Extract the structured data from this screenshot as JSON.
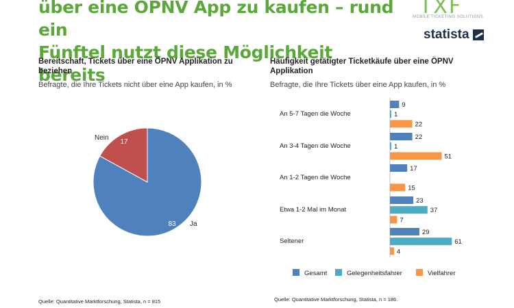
{
  "header": {
    "title_line1": "über eine ÖPNV App zu kaufen – rund ein",
    "title_line2": "Fünftel nutzt diese Möglichkeit bereits",
    "logo_mark": "TXF",
    "logo_sub": "MOBILE TICKETING SOLUTIONS",
    "brand": "statista"
  },
  "colors": {
    "headline": "#5aa83a",
    "ja": "#4f81bd",
    "nein": "#c0504d",
    "gesamt": "#4f81bd",
    "gelegenheit": "#4bacc6",
    "viel": "#f79646"
  },
  "chart_data": [
    {
      "type": "pie",
      "title": "Bereitschaft, Tickets über eine ÖPNV Applikation zu beziehen",
      "subtitle": "Befragte, die Ihre Tickets nicht über eine App kaufen, in %",
      "categories": [
        "Ja",
        "Nein"
      ],
      "values": [
        83,
        17
      ],
      "source": "Quelle: Quantitative Marktforschung, Statista, n = 815"
    },
    {
      "type": "bar",
      "orientation": "horizontal",
      "title": "Häufigkeit getätigter Ticketkäufe über eine ÖPNV Applikation",
      "subtitle": "Befragte, die Ihre Tickets über eine App kaufen, in %",
      "categories": [
        "An 5-7 Tagen die Woche",
        "An 3-4 Tagen die Woche",
        "An 1-2 Tagen die Woche",
        "Etwa 1-2 Mal im Monat",
        "Seltener"
      ],
      "series": [
        {
          "name": "Gesamt",
          "values": [
            9,
            22,
            17,
            23,
            29
          ]
        },
        {
          "name": "Gelegenheitsfahrer",
          "values": [
            1,
            1,
            null,
            37,
            61
          ]
        },
        {
          "name": "Vielfahrer",
          "values": [
            22,
            51,
            15,
            7,
            4
          ]
        }
      ],
      "legend_position": "bottom",
      "source": "Quelle: Quantitative Marktforschung, Statista, n = 186."
    }
  ]
}
